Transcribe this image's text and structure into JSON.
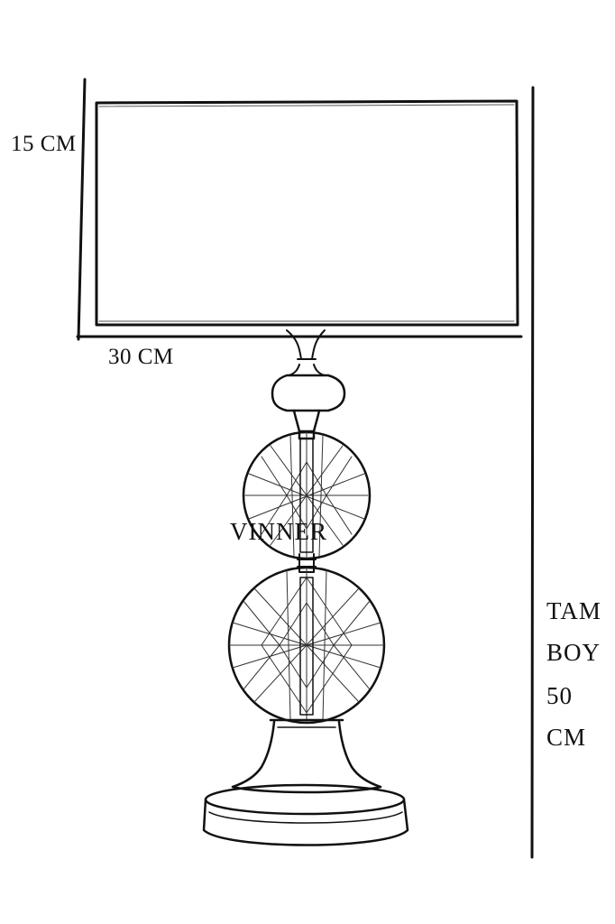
{
  "dimensions": {
    "height_label": "15 CM",
    "width_label": "30 CM",
    "total_height_words": [
      "TAM",
      "BOY",
      "50",
      "CM"
    ]
  },
  "brand_watermark": "VINNER",
  "colors": {
    "line": "#111111",
    "background": "#ffffff"
  }
}
